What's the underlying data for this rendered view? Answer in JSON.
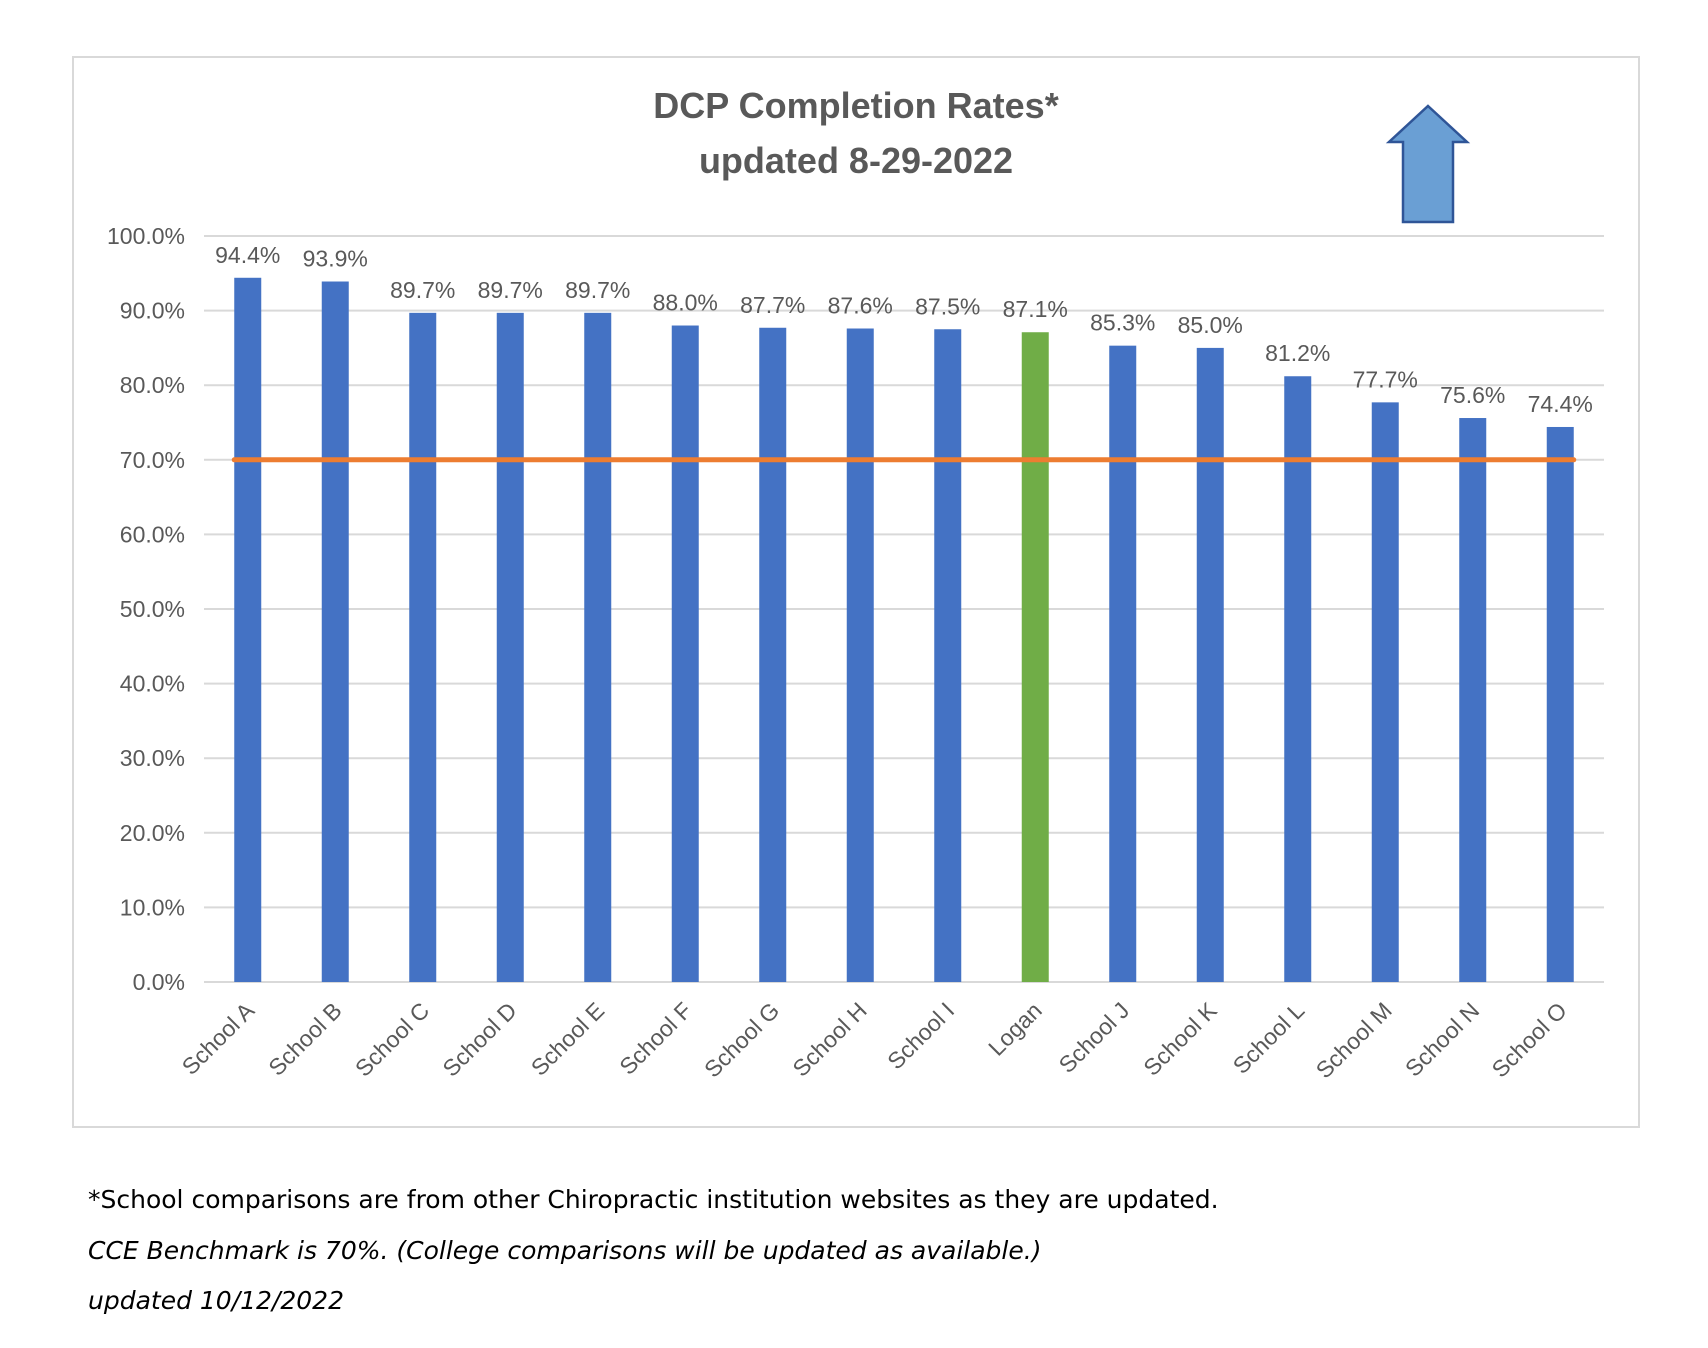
{
  "chart_data": {
    "type": "bar",
    "title_line1": "DCP Completion Rates*",
    "title_line2": "updated 8-29-2022",
    "categories": [
      "School A",
      "School B",
      "School C",
      "School D",
      "School E",
      "School F",
      "School G",
      "School H",
      "School I",
      "Logan",
      "School J",
      "School K",
      "School L",
      "School M",
      "School N",
      "School O"
    ],
    "values": [
      94.4,
      93.9,
      89.7,
      89.7,
      89.7,
      88.0,
      87.7,
      87.6,
      87.5,
      87.1,
      85.3,
      85.0,
      81.2,
      77.7,
      75.6,
      74.4
    ],
    "value_labels": [
      "94.4%",
      "93.9%",
      "89.7%",
      "89.7%",
      "89.7%",
      "88.0%",
      "87.7%",
      "87.6%",
      "87.5%",
      "87.1%",
      "85.3%",
      "85.0%",
      "81.2%",
      "77.7%",
      "75.6%",
      "74.4%"
    ],
    "highlight_category": "Logan",
    "benchmark_value": 70,
    "ylim": [
      0,
      100
    ],
    "yticks": [
      0,
      10,
      20,
      30,
      40,
      50,
      60,
      70,
      80,
      90,
      100
    ],
    "ytick_labels": [
      "0.0%",
      "10.0%",
      "20.0%",
      "30.0%",
      "40.0%",
      "50.0%",
      "60.0%",
      "70.0%",
      "80.0%",
      "90.0%",
      "100.0%"
    ],
    "xlabel": "",
    "ylabel": "",
    "grid": true,
    "annotation": "up-arrow-icon",
    "colors": {
      "bar": "#4472c4",
      "highlight": "#70ad47",
      "benchmark": "#ed7d31",
      "grid": "#d9d9d9",
      "arrow": "#6a9fd4",
      "arrow_stroke": "#2f5597",
      "text": "#595959"
    }
  },
  "footnotes": {
    "line1": "*School comparisons are from other Chiropractic institution websites as they are updated.",
    "line2": "CCE Benchmark is 70%. (College comparisons will be updated as available.)",
    "line3": "updated 10/12/2022"
  }
}
